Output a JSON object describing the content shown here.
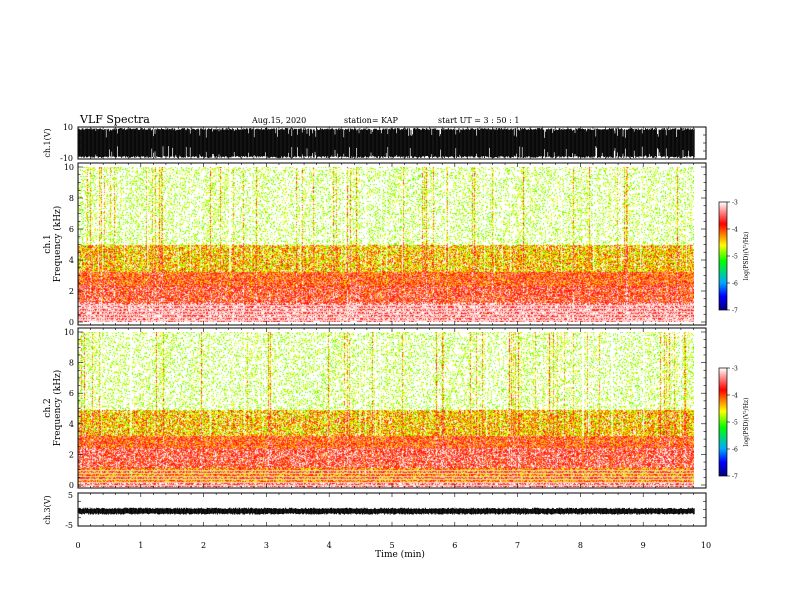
{
  "header": {
    "title": "VLF Spectra",
    "date": "Aug.15, 2020",
    "station": "station= KAP",
    "start_time": "start  UT =   3 : 50 : 1"
  },
  "chart_data": [
    {
      "type": "line",
      "name": "ch1-waveform",
      "ylabel": "ch.1(V)",
      "ylim": [
        -10,
        10
      ],
      "tick_labels": [
        "10",
        "-10"
      ],
      "x_range": [
        0,
        9.82
      ],
      "envelope": "dense saturated oscillation spanning -10 to 10 V with frequent dropouts"
    },
    {
      "type": "heatmap",
      "name": "ch1-spectrogram",
      "ylabel": "ch.1\nFrequency (kHz)",
      "ylim": [
        0,
        10
      ],
      "y_tick_labels": [
        "0",
        "2",
        "4",
        "6",
        "8",
        "10"
      ],
      "x_range": [
        0,
        9.82
      ],
      "colorbar": {
        "label": "log(PSD)(V²/Hz)",
        "range": [
          -7,
          -3
        ],
        "tick_labels": [
          "-3",
          "-4",
          "-5",
          "-6",
          "-7"
        ]
      },
      "bands": [
        {
          "from": 0.0,
          "to": 0.2,
          "level": -3.2
        },
        {
          "from": 0.2,
          "to": 1.2,
          "level": -3.3
        },
        {
          "from": 1.2,
          "to": 2.3,
          "level": -3.7
        },
        {
          "from": 2.3,
          "to": 3.2,
          "level": -3.9
        },
        {
          "from": 3.2,
          "to": 5.0,
          "level": -4.6
        },
        {
          "from": 5.0,
          "to": 10.0,
          "level": -5.4
        }
      ]
    },
    {
      "type": "heatmap",
      "name": "ch2-spectrogram",
      "ylabel": "ch.2\nFrequency (kHz)",
      "ylim": [
        0,
        10
      ],
      "y_tick_labels": [
        "0",
        "2",
        "4",
        "6",
        "8",
        "10"
      ],
      "x_range": [
        0,
        9.82
      ],
      "colorbar": {
        "label": "log(PSD)(V²/Hz)",
        "range": [
          -7,
          -3
        ],
        "tick_labels": [
          "-3",
          "-4",
          "-5",
          "-6",
          "-7"
        ]
      },
      "bands": [
        {
          "from": 0.0,
          "to": 0.3,
          "level": -3.4
        },
        {
          "from": 0.3,
          "to": 1.2,
          "level": -4.2
        },
        {
          "from": 1.2,
          "to": 2.5,
          "level": -3.6
        },
        {
          "from": 2.5,
          "to": 3.3,
          "level": -3.9
        },
        {
          "from": 3.3,
          "to": 5.0,
          "level": -4.6
        },
        {
          "from": 5.0,
          "to": 10.0,
          "level": -5.4
        }
      ]
    },
    {
      "type": "line",
      "name": "ch3-waveform",
      "ylabel": "ch.3(V)",
      "ylim": [
        -5,
        5
      ],
      "tick_labels": [
        "5",
        "-5"
      ],
      "x_range": [
        0,
        9.82
      ],
      "envelope": "narrow band around -1 V"
    }
  ],
  "x_axis": {
    "label": "Time (min)",
    "range": [
      0,
      10
    ],
    "tick_labels": [
      "0",
      "1",
      "2",
      "3",
      "4",
      "5",
      "6",
      "7",
      "8",
      "9",
      "10"
    ]
  },
  "colors": {
    "ink": "#000000",
    "background": "#ffffff",
    "colormap": [
      "#000080",
      "#0000ff",
      "#00aaff",
      "#00ff00",
      "#ffff00",
      "#ff8000",
      "#ff0000",
      "#ff9999",
      "#ffffff"
    ]
  }
}
